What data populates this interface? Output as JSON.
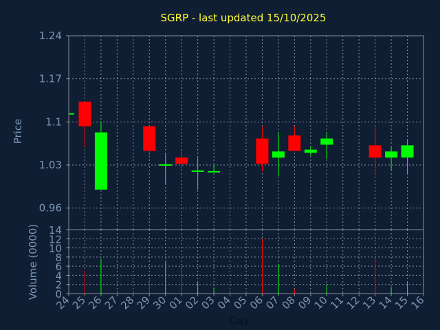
{
  "chart_data": {
    "type": "candlestick",
    "title": "SGRP - last updated 15/10/2025",
    "xlabel": "Day",
    "price_panel": {
      "ylabel": "Price",
      "ylim": [
        0.925,
        1.24
      ],
      "yticks": [
        "1.24",
        "1.17",
        "1.1",
        "1.03",
        "0.96"
      ],
      "ytick_values": [
        1.24,
        1.17,
        1.1,
        1.03,
        0.96
      ]
    },
    "volume_panel": {
      "ylabel": "Volume (0000)",
      "ylim": [
        0,
        14
      ],
      "yticks": [
        "14",
        "12",
        "10",
        "8",
        "6",
        "4",
        "2",
        "0"
      ],
      "ytick_values": [
        14,
        12,
        10,
        8,
        6,
        4,
        2,
        0
      ]
    },
    "days": [
      "24",
      "25",
      "26",
      "27",
      "28",
      "29",
      "30",
      "01",
      "02",
      "03",
      "04",
      "05",
      "06",
      "07",
      "08",
      "09",
      "10",
      "11",
      "12",
      "13",
      "14",
      "15",
      "16"
    ],
    "candles": [
      {
        "day": "24",
        "open": 1.113,
        "close": 1.113,
        "high": 1.113,
        "low": 1.113,
        "volume": 0
      },
      {
        "day": "25",
        "open": 1.133,
        "close": 1.093,
        "high": 1.133,
        "low": 1.06,
        "volume": 5
      },
      {
        "day": "26",
        "open": 0.99,
        "close": 1.083,
        "high": 1.101,
        "low": 0.99,
        "volume": 7.5
      },
      {
        "day": "29",
        "open": 1.093,
        "close": 1.053,
        "high": 1.093,
        "low": 1.045,
        "volume": 3
      },
      {
        "day": "30",
        "open": 1.03,
        "close": 1.03,
        "high": 1.05,
        "low": 1.0,
        "volume": 7
      },
      {
        "day": "01",
        "open": 1.042,
        "close": 1.032,
        "high": 1.052,
        "low": 1.02,
        "volume": 6
      },
      {
        "day": "02",
        "open": 1.02,
        "close": 1.02,
        "high": 1.042,
        "low": 0.99,
        "volume": 2.5
      },
      {
        "day": "03",
        "open": 1.019,
        "close": 1.019,
        "high": 1.03,
        "low": 1.019,
        "volume": 1.3
      },
      {
        "day": "06",
        "open": 1.073,
        "close": 1.032,
        "high": 1.093,
        "low": 1.02,
        "volume": 12
      },
      {
        "day": "07",
        "open": 1.042,
        "close": 1.052,
        "high": 1.083,
        "low": 1.012,
        "volume": 6.5
      },
      {
        "day": "08",
        "open": 1.078,
        "close": 1.053,
        "high": 1.093,
        "low": 1.053,
        "volume": 1
      },
      {
        "day": "09",
        "open": 1.05,
        "close": 1.055,
        "high": 1.06,
        "low": 1.045,
        "volume": 0
      },
      {
        "day": "10",
        "open": 1.063,
        "close": 1.073,
        "high": 1.083,
        "low": 1.04,
        "volume": 2
      },
      {
        "day": "13",
        "open": 1.062,
        "close": 1.042,
        "high": 1.093,
        "low": 1.015,
        "volume": 7.5
      },
      {
        "day": "14",
        "open": 1.042,
        "close": 1.052,
        "high": 1.06,
        "low": 1.02,
        "volume": 1.5
      },
      {
        "day": "15",
        "open": 1.042,
        "close": 1.062,
        "high": 1.072,
        "low": 1.015,
        "volume": 2.5
      }
    ],
    "colors": {
      "up": "#00ff00",
      "down": "#ff0000",
      "background": "#0f1e33",
      "grid": "#8a93a0",
      "text": "#7d95b5",
      "title": "#ffff33"
    },
    "grid": true
  }
}
